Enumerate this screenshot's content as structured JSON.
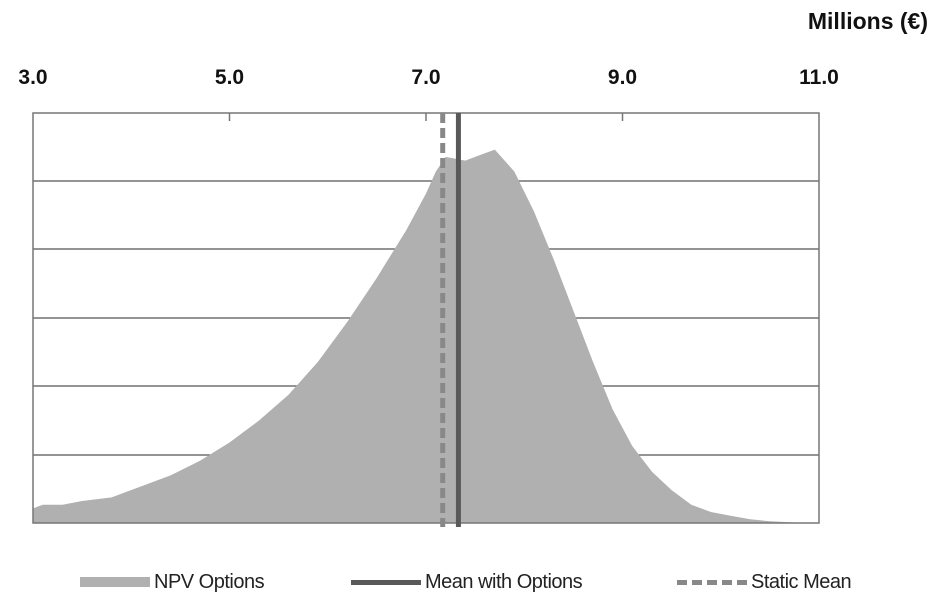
{
  "chart_data": {
    "type": "area",
    "unit_label": "Millions (€)",
    "xlim": [
      3.0,
      11.0
    ],
    "x_ticks": [
      "3.0",
      "5.0",
      "7.0",
      "9.0",
      "11.0"
    ],
    "x_tick_values": [
      3.0,
      5.0,
      7.0,
      9.0,
      11.0
    ],
    "ylim": [
      0,
      1.12
    ],
    "grid": true,
    "legend_position": "bottom",
    "series": [
      {
        "name": "NPV Options",
        "color": "#b0b0b0",
        "x": [
          3.0,
          3.1,
          3.3,
          3.5,
          3.8,
          4.1,
          4.4,
          4.7,
          5.0,
          5.3,
          5.6,
          5.9,
          6.2,
          6.5,
          6.8,
          7.0,
          7.1,
          7.2,
          7.4,
          7.5,
          7.6,
          7.7,
          7.9,
          8.1,
          8.3,
          8.5,
          8.7,
          8.9,
          9.1,
          9.3,
          9.5,
          9.7,
          9.9,
          10.1,
          10.3,
          10.5,
          10.7,
          10.9,
          11.0
        ],
        "values": [
          0.04,
          0.05,
          0.05,
          0.06,
          0.07,
          0.1,
          0.13,
          0.17,
          0.22,
          0.28,
          0.35,
          0.44,
          0.55,
          0.67,
          0.8,
          0.9,
          0.96,
          1.0,
          0.99,
          1.0,
          1.01,
          1.02,
          0.96,
          0.85,
          0.72,
          0.58,
          0.44,
          0.31,
          0.21,
          0.14,
          0.09,
          0.05,
          0.03,
          0.02,
          0.01,
          0.005,
          0.002,
          0.0,
          0.0
        ]
      },
      {
        "name": "Mean with Options",
        "color": "#595959",
        "style": "solid",
        "x_value": 7.33
      },
      {
        "name": "Static Mean",
        "color": "#888888",
        "style": "dashed",
        "x_value": 7.17
      }
    ]
  }
}
